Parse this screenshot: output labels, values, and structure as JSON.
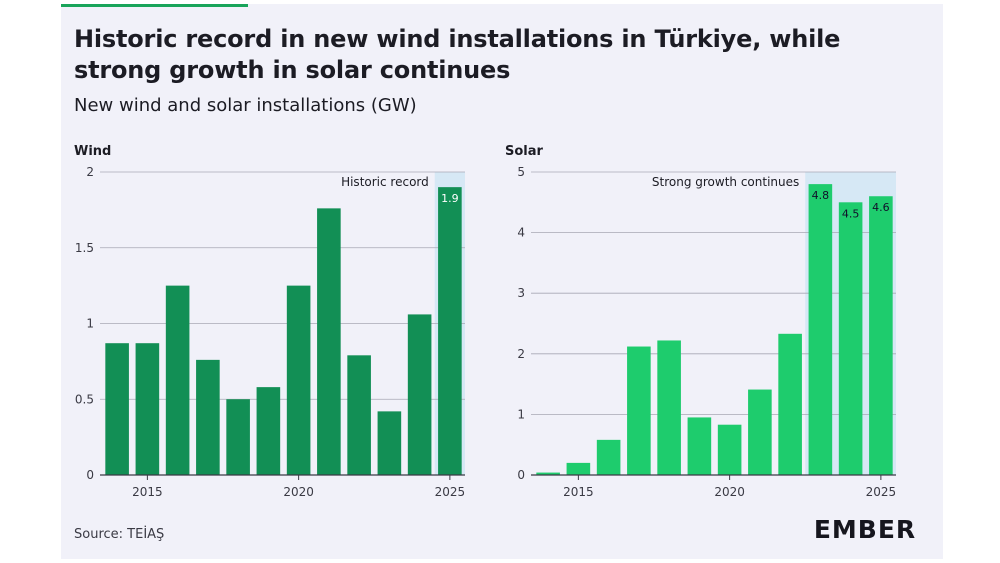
{
  "title": "Historic record in new wind installations in Türkiye, while strong growth in solar continues",
  "subtitle": "New wind and solar installations (GW)",
  "source": "Source: TEİAŞ",
  "logo_text": "EMBER",
  "colors": {
    "wind": "#128f55",
    "solar": "#1ecc6d",
    "highlight": "#d6e8f5",
    "grid": "#a8a8b4",
    "axis": "#3a3a44"
  },
  "chart_data": [
    {
      "type": "bar",
      "panel": "Wind",
      "x": [
        2014,
        2015,
        2016,
        2017,
        2018,
        2019,
        2020,
        2021,
        2022,
        2023,
        2024,
        2025
      ],
      "values": [
        0.87,
        0.87,
        1.25,
        0.76,
        0.5,
        0.58,
        1.25,
        1.76,
        0.79,
        0.42,
        1.06,
        1.9
      ],
      "data_labels": {
        "2025": "1.9"
      },
      "xticks": [
        "2015",
        "2020",
        "2025"
      ],
      "yticks": [
        "0",
        "0.5",
        "1",
        "1.5",
        "2"
      ],
      "ylim": [
        0,
        2
      ],
      "highlight_years": [
        2025
      ],
      "annotation": "Historic record",
      "grid": true
    },
    {
      "type": "bar",
      "panel": "Solar",
      "x": [
        2014,
        2015,
        2016,
        2017,
        2018,
        2019,
        2020,
        2021,
        2022,
        2023,
        2024,
        2025
      ],
      "values": [
        0.04,
        0.2,
        0.58,
        2.12,
        2.22,
        0.95,
        0.83,
        1.41,
        2.33,
        4.8,
        4.5,
        4.6
      ],
      "data_labels": {
        "2023": "4.8",
        "2024": "4.5",
        "2025": "4.6"
      },
      "xticks": [
        "2015",
        "2020",
        "2025"
      ],
      "yticks": [
        "0",
        "1",
        "2",
        "3",
        "4",
        "5"
      ],
      "ylim": [
        0,
        5
      ],
      "highlight_years": [
        2023,
        2024,
        2025
      ],
      "annotation": "Strong growth continues",
      "grid": true
    }
  ]
}
